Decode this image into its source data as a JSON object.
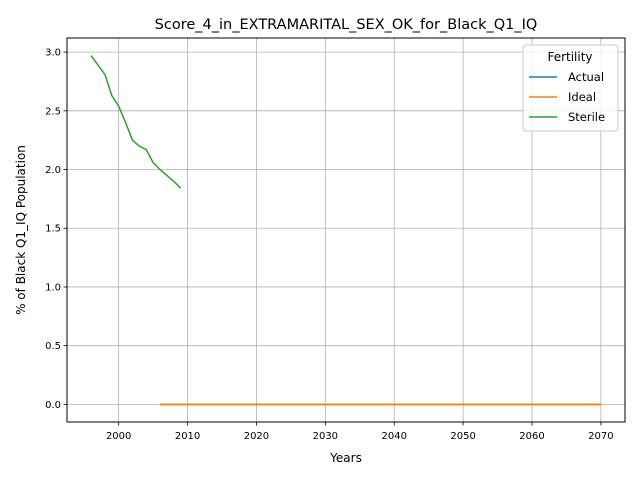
{
  "chart_data": {
    "type": "line",
    "title": "Score_4_in_EXTRAMARITAL_SEX_OK_for_Black_Q1_IQ",
    "xlabel": "Years",
    "ylabel": "% of Black Q1_IQ Population",
    "xlim": [
      1992.5,
      2073.5
    ],
    "ylim": [
      -0.15,
      3.12
    ],
    "xticks": [
      2000,
      2010,
      2020,
      2030,
      2040,
      2050,
      2060,
      2070
    ],
    "xtick_labels": [
      "2000",
      "2010",
      "2020",
      "2030",
      "2040",
      "2050",
      "2060",
      "2070"
    ],
    "yticks": [
      0.0,
      0.5,
      1.0,
      1.5,
      2.0,
      2.5,
      3.0
    ],
    "ytick_labels": [
      "0.0",
      "0.5",
      "1.0",
      "1.5",
      "2.0",
      "2.5",
      "3.0"
    ],
    "grid": true,
    "legend": {
      "title": "Fertility",
      "position": "top-right"
    },
    "series": [
      {
        "name": "Actual",
        "color": "#1f77b4",
        "x": [
          2006,
          2070
        ],
        "y": [
          0.0,
          0.0
        ]
      },
      {
        "name": "Ideal",
        "color": "#ff7f0e",
        "x": [
          2006,
          2010,
          2020,
          2030,
          2040,
          2050,
          2060,
          2070
        ],
        "y": [
          0.0,
          0.0,
          0.0,
          0.0,
          0.0,
          0.0,
          0.0,
          0.0
        ]
      },
      {
        "name": "Sterile",
        "color": "#2ca02c",
        "x": [
          1996,
          1997,
          1998,
          1999,
          2000,
          2001,
          2002,
          2003,
          2004,
          2005,
          2006,
          2007,
          2008,
          2009
        ],
        "y": [
          2.97,
          2.89,
          2.81,
          2.63,
          2.54,
          2.4,
          2.25,
          2.2,
          2.17,
          2.06,
          2.0,
          1.95,
          1.9,
          1.84
        ]
      }
    ]
  }
}
